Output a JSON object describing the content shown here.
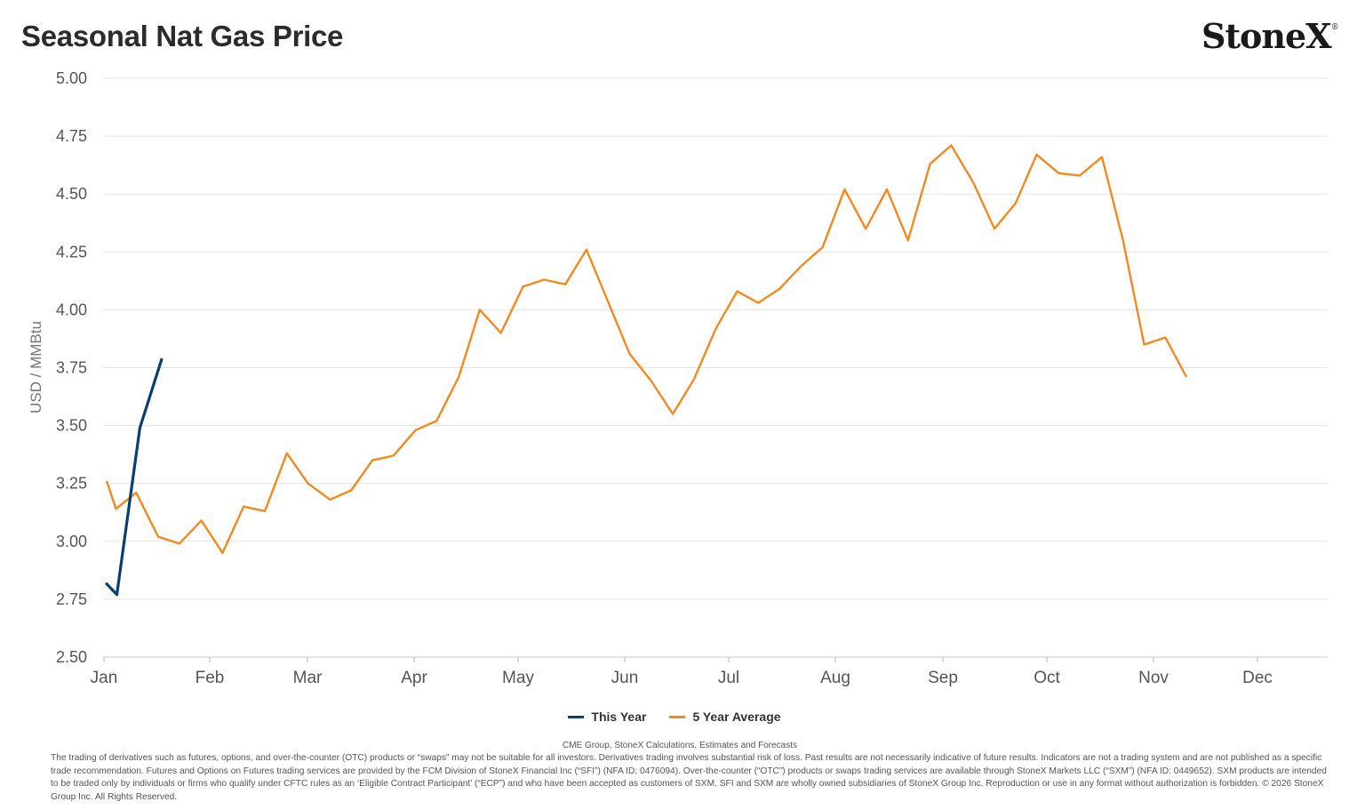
{
  "header": {
    "title": "Seasonal Nat Gas Price",
    "logo_text": "StoneX",
    "logo_mark": "®"
  },
  "chart_data": {
    "type": "line",
    "ylabel": "USD / MMBtu",
    "ylim": [
      2.5,
      5.0
    ],
    "yticks": [
      "5.00",
      "4.75",
      "4.50",
      "4.25",
      "4.00",
      "3.75",
      "3.50",
      "3.25",
      "3.00",
      "2.75",
      "2.50"
    ],
    "xticks": [
      "Jan",
      "Feb",
      "Mar",
      "Apr",
      "May",
      "Jun",
      "Jul",
      "Aug",
      "Sep",
      "Oct",
      "Nov",
      "Dec"
    ],
    "grid": true,
    "legend_position": "bottom",
    "series": [
      {
        "name": "This Year",
        "color": "#0b3e6e",
        "points": [
          [
            0.3,
            2.82
          ],
          [
            1.5,
            2.77
          ],
          [
            4.0,
            3.49
          ],
          [
            6.4,
            3.79
          ]
        ]
      },
      {
        "name": "5 Year Average",
        "color": "#f28a23",
        "points": [
          [
            0.4,
            3.26
          ],
          [
            1.4,
            3.14
          ],
          [
            3.6,
            3.21
          ],
          [
            6.0,
            3.02
          ],
          [
            8.3,
            2.99
          ],
          [
            10.7,
            3.09
          ],
          [
            13.0,
            2.95
          ],
          [
            15.3,
            3.15
          ],
          [
            17.6,
            3.13
          ],
          [
            20.0,
            3.38
          ],
          [
            22.3,
            3.25
          ],
          [
            24.7,
            3.18
          ],
          [
            27.0,
            3.22
          ],
          [
            29.3,
            3.35
          ],
          [
            31.6,
            3.37
          ],
          [
            34.0,
            3.48
          ],
          [
            36.3,
            3.52
          ],
          [
            38.7,
            3.71
          ],
          [
            41.0,
            4.0
          ],
          [
            43.3,
            3.9
          ],
          [
            45.7,
            4.1
          ],
          [
            48.0,
            4.13
          ],
          [
            50.3,
            4.11
          ],
          [
            52.6,
            4.26
          ],
          [
            55.0,
            4.03
          ],
          [
            57.3,
            3.81
          ],
          [
            59.7,
            3.69
          ],
          [
            62.0,
            3.55
          ],
          [
            64.3,
            3.7
          ],
          [
            66.7,
            3.92
          ],
          [
            69.0,
            4.08
          ],
          [
            71.3,
            4.03
          ],
          [
            73.6,
            4.09
          ],
          [
            76.0,
            4.19
          ],
          [
            78.3,
            4.27
          ],
          [
            80.7,
            4.52
          ],
          [
            83.0,
            4.35
          ],
          [
            85.3,
            4.52
          ],
          [
            87.6,
            4.3
          ],
          [
            90.0,
            4.63
          ],
          [
            92.3,
            4.71
          ],
          [
            94.7,
            4.55
          ],
          [
            97.0,
            4.35
          ],
          [
            99.3,
            4.46
          ],
          [
            101.6,
            4.67
          ],
          [
            104.0,
            4.59
          ],
          [
            106.3,
            4.58
          ],
          [
            108.7,
            4.66
          ],
          [
            111.0,
            4.3
          ],
          [
            113.3,
            3.85
          ],
          [
            115.6,
            3.88
          ],
          [
            117.9,
            3.71
          ]
        ]
      }
    ],
    "x_unit_note": "x is in weeks of the year from Jan 1"
  },
  "legend": {
    "items": [
      "This Year",
      "5 Year Average"
    ]
  },
  "footer": {
    "source": "CME Group, StoneX Calculations, Estimates and Forecasts",
    "disclaimer": "The trading of derivatives such as futures, options, and over-the-counter (OTC) products or “swaps” may not be suitable for all investors. Derivatives trading involves substantial risk of loss. Past results are not necessarily indicative of future results. Indicators are not a trading system and are not published as a specific trade recommendation. Futures and Options on Futures trading services are provided by the FCM Division of StoneX Financial Inc (“SFI”) (NFA ID: 0476094). Over-the-counter (“OTC”) products or swaps trading services are available through StoneX Markets LLC (“SXM”) (NFA ID: 0449652). SXM products are intended to be traded only by individuals or firms who qualify under CFTC rules as an ‘Eligible Contract Participant’ (“ECP”) and who have been accepted as customers of SXM. SFI and SXM are wholly owned subsidiaries of StoneX Group Inc. Reproduction or use in any format without authorization is forbidden. © 2026 StoneX Group Inc. All Rights Reserved."
  }
}
